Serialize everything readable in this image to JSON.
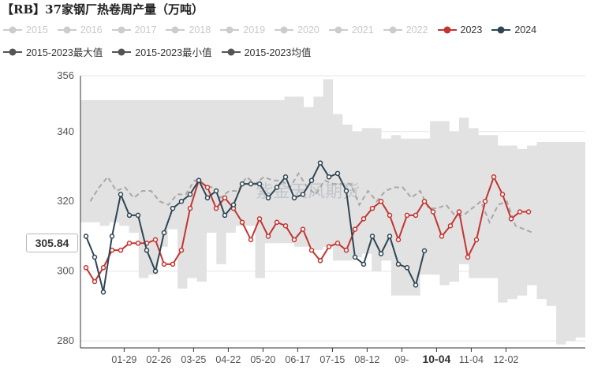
{
  "title": "【RB】37家钢厂热卷周产量（万吨）",
  "watermark": "紫金天风期货",
  "legend": {
    "row1": [
      {
        "label": "2015",
        "color": "#cccccc",
        "state": "off"
      },
      {
        "label": "2016",
        "color": "#cccccc",
        "state": "off"
      },
      {
        "label": "2017",
        "color": "#cccccc",
        "state": "off"
      },
      {
        "label": "2018",
        "color": "#cccccc",
        "state": "off"
      },
      {
        "label": "2019",
        "color": "#cccccc",
        "state": "off"
      },
      {
        "label": "2020",
        "color": "#cccccc",
        "state": "off"
      },
      {
        "label": "2021",
        "color": "#cccccc",
        "state": "off"
      },
      {
        "label": "2022",
        "color": "#cccccc",
        "state": "off"
      },
      {
        "label": "2023",
        "color": "#c23531",
        "state": "on"
      },
      {
        "label": "2024",
        "color": "#2f4554",
        "state": "on"
      }
    ],
    "row2": [
      {
        "label": "2015-2023最大值",
        "color": "#555555",
        "state": "on"
      },
      {
        "label": "2015-2023最小值",
        "color": "#555555",
        "state": "on"
      },
      {
        "label": "2015-2023均值",
        "color": "#555555",
        "state": "on"
      }
    ]
  },
  "cursor": {
    "y_value_label": "305.84",
    "x_label": "10-04"
  },
  "chart_data": {
    "type": "line",
    "ylim": [
      278,
      356
    ],
    "yticks": [
      280,
      300,
      320,
      340,
      356
    ],
    "xlim": [
      0,
      52
    ],
    "xtick_labels": [
      "01-29",
      "02-26",
      "03-25",
      "04-22",
      "05-20",
      "06-17",
      "07-15",
      "08-12",
      "09-",
      "10-04",
      "11-04",
      "12-02"
    ],
    "xtick_positions": [
      4.4,
      8.4,
      12.4,
      16.4,
      20.4,
      24.4,
      28.4,
      32.4,
      36.4,
      40.4,
      44.4,
      48.4
    ],
    "band_max": [
      349,
      349,
      349,
      349,
      349,
      349,
      349,
      349,
      349,
      349,
      349,
      349,
      349,
      349,
      349,
      349,
      349,
      349,
      349,
      349,
      349,
      350,
      350,
      347,
      350,
      355,
      345,
      342,
      340,
      341,
      341,
      338,
      339,
      338,
      338,
      338,
      343,
      343,
      340,
      344,
      341,
      339,
      339,
      336,
      336,
      335,
      336,
      337,
      337,
      337,
      337,
      337
    ],
    "band_min": [
      314,
      314,
      313,
      314,
      313,
      311,
      298,
      299,
      307,
      312,
      295,
      298,
      297,
      311,
      302,
      311,
      313,
      313,
      298,
      308,
      308,
      308,
      307,
      307,
      306,
      307,
      303,
      303,
      304,
      305,
      300,
      303,
      293,
      293,
      293,
      299,
      299,
      296,
      297,
      302,
      298,
      298,
      298,
      291,
      292,
      293,
      296,
      292,
      290,
      279,
      280,
      281
    ],
    "average": [
      320,
      324,
      327,
      323,
      324,
      321,
      323,
      323,
      320,
      319,
      322,
      322,
      326,
      325,
      324,
      321,
      323,
      323,
      327,
      325,
      327,
      326,
      326,
      324,
      328,
      324,
      322,
      326,
      325,
      325,
      325,
      319,
      323,
      320,
      323,
      324,
      324,
      321,
      323,
      318,
      318,
      319,
      316,
      316,
      318,
      320,
      314,
      319,
      320,
      313,
      312,
      311
    ],
    "series": [
      {
        "name": "2023",
        "color": "#c23531",
        "x": [
          0,
          1,
          2,
          3,
          4,
          5,
          6,
          7,
          8,
          9,
          10,
          11,
          12,
          13,
          14,
          15,
          16,
          17,
          18,
          19,
          20,
          21,
          22,
          23,
          24,
          25,
          26,
          27,
          28,
          29,
          30,
          31,
          32,
          33,
          34,
          35,
          36,
          37,
          38,
          39,
          40,
          41,
          42,
          43,
          44,
          45,
          46,
          47,
          48,
          49,
          50,
          51
        ],
        "values": [
          301,
          297,
          301,
          306,
          306,
          308,
          308,
          308,
          309,
          302,
          302,
          306,
          318,
          326,
          324,
          318,
          321,
          318,
          314,
          309,
          315,
          310,
          314,
          313,
          309,
          312,
          306,
          303,
          307,
          308,
          306,
          312,
          315,
          318,
          320,
          316,
          309,
          316,
          316,
          320,
          317,
          310,
          313,
          317,
          304,
          309,
          320,
          327,
          322,
          315,
          317,
          317
        ]
      },
      {
        "name": "2024",
        "color": "#2f4554",
        "x": [
          0,
          1,
          2,
          3,
          4,
          5,
          6,
          7,
          8,
          9,
          10,
          11,
          12,
          13,
          14,
          15,
          16,
          17,
          18,
          19,
          20,
          21,
          22,
          23,
          24,
          25,
          26,
          27,
          28,
          29,
          30,
          31,
          32,
          33,
          34,
          35,
          36,
          37,
          38,
          39
        ],
        "values": [
          310,
          304,
          294,
          310,
          322,
          316,
          316,
          306,
          300,
          311,
          318,
          320,
          322,
          326,
          321,
          323,
          316,
          319,
          325,
          325,
          325,
          321,
          324,
          327,
          321,
          322,
          326,
          331,
          327,
          328,
          323,
          304,
          302,
          310,
          305,
          310,
          302,
          301,
          296,
          305.84
        ]
      }
    ]
  }
}
